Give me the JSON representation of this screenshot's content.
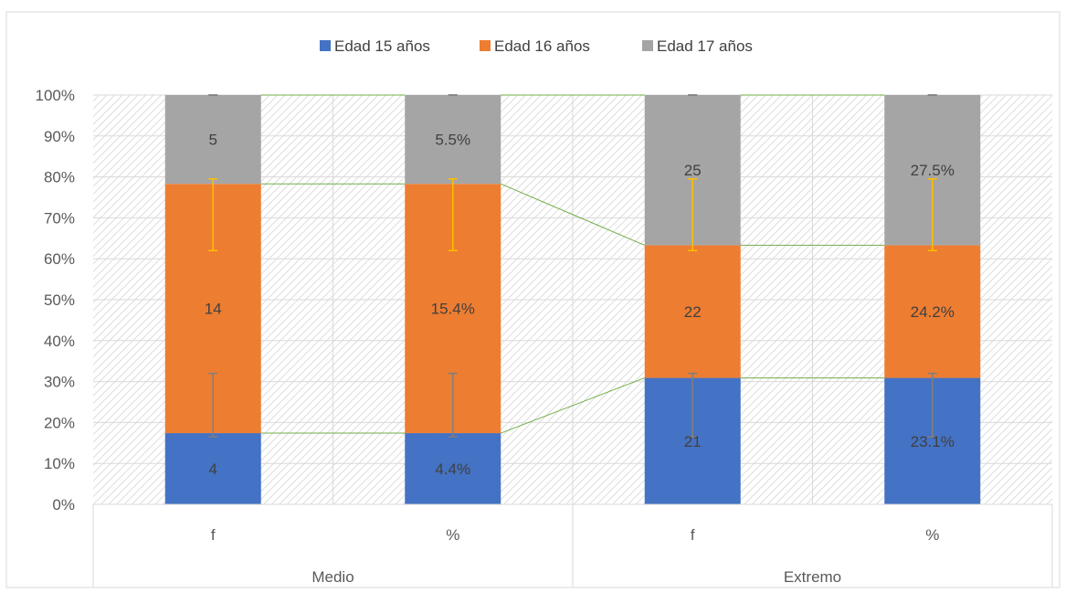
{
  "chart_data": {
    "type": "bar",
    "stacked": "percent",
    "groups": [
      {
        "name": "Medio",
        "categories": [
          "f",
          "%"
        ]
      },
      {
        "name": "Extremo",
        "categories": [
          "f",
          "%"
        ]
      }
    ],
    "series": [
      {
        "name": "Edad 15 años",
        "color": "#4472C4",
        "values": [
          17.4,
          17.4,
          30.9,
          30.9
        ],
        "labels": [
          "4",
          "4.4%",
          "21",
          "23.1%"
        ],
        "error_color": "#7F7F7F",
        "error_low": [
          16.5,
          16.5,
          16.5,
          16.5
        ],
        "error_high": [
          32,
          32,
          32,
          32
        ]
      },
      {
        "name": "Edad 16 años",
        "color": "#ED7D31",
        "values": [
          60.9,
          60.9,
          32.4,
          32.4
        ],
        "labels": [
          "14",
          "15.4%",
          "22",
          "24.2%"
        ],
        "error_color": "#FFC000",
        "error_low": [
          62,
          62,
          62,
          62
        ],
        "error_high": [
          79.5,
          79.5,
          79.5,
          79.5
        ]
      },
      {
        "name": "Edad 17 años",
        "color": "#A5A5A5",
        "values": [
          21.7,
          21.7,
          36.7,
          36.7
        ],
        "labels": [
          "5",
          "5.5%",
          "25",
          "27.5%"
        ],
        "error_color": "#7F7F7F",
        "error_low": [
          100,
          100,
          100,
          100
        ],
        "error_high": [
          100,
          100,
          100,
          100
        ]
      }
    ],
    "y_ticks": [
      "0%",
      "10%",
      "20%",
      "30%",
      "40%",
      "50%",
      "60%",
      "70%",
      "80%",
      "90%",
      "100%"
    ],
    "ylim": [
      0,
      100
    ],
    "series_lines": true,
    "series_line_color": "#70AD47",
    "legend_position": "top",
    "grid": true,
    "plot_area_pattern": "diagonal-hatch"
  }
}
